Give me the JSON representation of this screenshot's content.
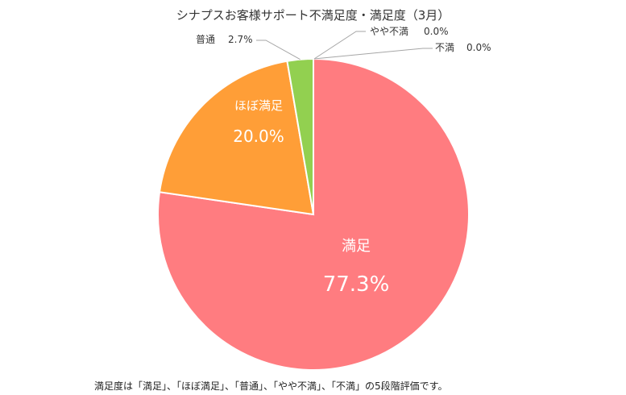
{
  "chart_data": {
    "type": "pie",
    "title": "シナプスお客様サポート不満足度・満足度（3月）",
    "start": "top",
    "direction": "clockwise",
    "slices": [
      {
        "label": "満足",
        "value": 77.3,
        "display": "77.3%",
        "color": "#ff7c80",
        "label_position": "inside"
      },
      {
        "label": "ほぼ満足",
        "value": 20.0,
        "display": "20.0%",
        "color": "#ff9e37",
        "label_position": "inside"
      },
      {
        "label": "普通",
        "value": 2.7,
        "display": "2.7%",
        "color": "#92d050",
        "label_position": "outside"
      },
      {
        "label": "やや不満",
        "value": 0.0,
        "display": "0.0%",
        "color": "#5b9bd5",
        "label_position": "outside"
      },
      {
        "label": "不満",
        "value": 0.0,
        "display": "0.0%",
        "color": "#7f7f7f",
        "label_position": "outside"
      }
    ],
    "footnote": "満足度は「満足」、「ほぼ満足」、「普通」、「やや不満」、「不満」の5段階評価です。"
  }
}
